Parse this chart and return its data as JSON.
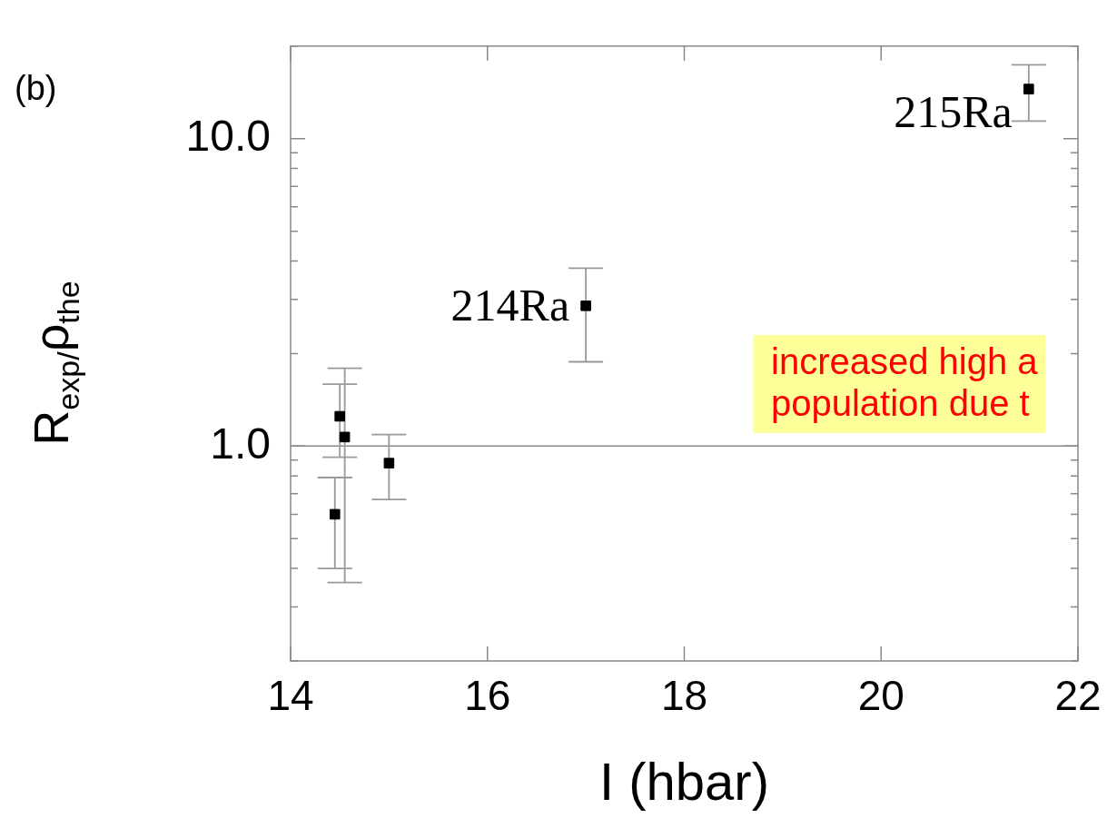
{
  "chart_data": {
    "type": "scatter",
    "ylabel": "R$_{exp/}$ρ$_{the}$",
    "xlabel": "I (hbar)",
    "x": [
      14.45,
      14.5,
      14.55,
      15,
      17,
      21.5
    ],
    "series": [
      {
        "color": "#000000",
        "values": [
          0.6,
          1.25,
          1.07,
          0.88,
          2.86,
          14.5
        ],
        "errors": [
          [
            0.4,
            0.79
          ],
          [
            0.92,
            1.59
          ],
          [
            0.36,
            1.79
          ],
          [
            0.67,
            1.09
          ],
          [
            1.88,
            3.79
          ],
          [
            11.4,
            17.4
          ]
        ]
      }
    ],
    "log": "y",
    "marker": "square",
    "grid": false,
    "legend": false,
    "xlim": [
      14,
      22
    ],
    "xticks": [
      14,
      16,
      18,
      20,
      22
    ],
    "ylim": [
      0.2,
      20
    ],
    "yticks": [
      {
        "value": 0.2,
        "label": null
      },
      {
        "value": 0.3,
        "label": null
      },
      {
        "value": 0.4,
        "label": null
      },
      {
        "value": 0.5,
        "label": null
      },
      {
        "value": 0.6,
        "label": null
      },
      {
        "value": 0.7,
        "label": null
      },
      {
        "value": 0.8,
        "label": null
      },
      {
        "value": 0.9,
        "label": null
      },
      {
        "value": 1,
        "label": "1.0"
      },
      {
        "value": 2,
        "label": null
      },
      {
        "value": 3,
        "label": null
      },
      {
        "value": 4,
        "label": null
      },
      {
        "value": 5,
        "label": null
      },
      {
        "value": 6,
        "label": null
      },
      {
        "value": 7,
        "label": null
      },
      {
        "value": 8,
        "label": null
      },
      {
        "value": 9,
        "label": null
      },
      {
        "value": 10,
        "label": "10.0"
      },
      {
        "value": 20,
        "label": null
      }
    ],
    "ref_lines": [
      {
        "axis": "y",
        "value": 1,
        "color": "#888888"
      }
    ],
    "annotations": [
      "(b)",
      {
        "text": "214Ra",
        "x": 17,
        "y": 2.86
      },
      {
        "text": "215Ra",
        "x": 21.5,
        "y": 14.5
      },
      "increased high a\npopulation due t"
    ]
  }
}
